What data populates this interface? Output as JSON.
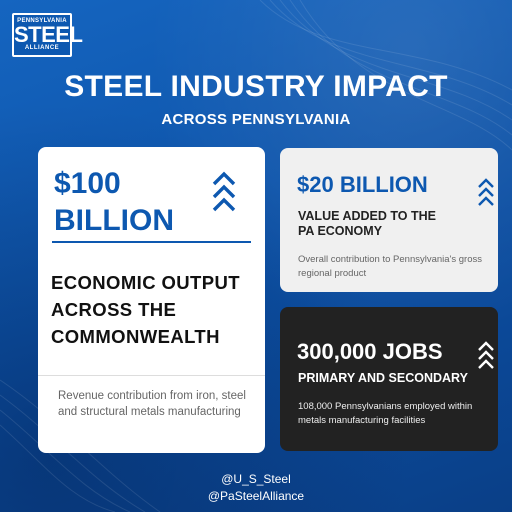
{
  "logo": {
    "top_text": "PENNSYLVANIA",
    "main_text": "STEEL",
    "bottom_text": "ALLIANCE",
    "icon": "pennsylvania-steel-alliance-logo"
  },
  "header": {
    "title": "STEEL INDUSTRY IMPACT",
    "subtitle": "ACROSS PENNSYLVANIA"
  },
  "cards": {
    "output": {
      "amount_line1": "$100",
      "amount_line2": "BILLION",
      "heading": "ECONOMIC OUTPUT ACROSS THE COMMONWEALTH",
      "note": "Revenue contribution from iron, steel and structural metals manufacturing",
      "icon": "triple-chevron-up-icon"
    },
    "value_added": {
      "amount": "$20 BILLION",
      "heading_line1": "VALUE ADDED TO THE",
      "heading_line2": "PA ECONOMY",
      "note": "Overall contribution to Pennsylvania's gross regional product",
      "icon": "triple-chevron-up-icon"
    },
    "jobs": {
      "amount": "300,000 JOBS",
      "heading": "PRIMARY AND SECONDARY",
      "note": "108,000 Pennsylvanians employed within metals manufacturing facilities",
      "icon": "triple-chevron-up-icon"
    }
  },
  "footer": {
    "handle1": "@U_S_Steel",
    "handle2": "@PaSteelAlliance"
  },
  "colors": {
    "brand_blue": "#0d58b0",
    "dark_card": "#222222",
    "light_card": "#f0f0f0"
  }
}
